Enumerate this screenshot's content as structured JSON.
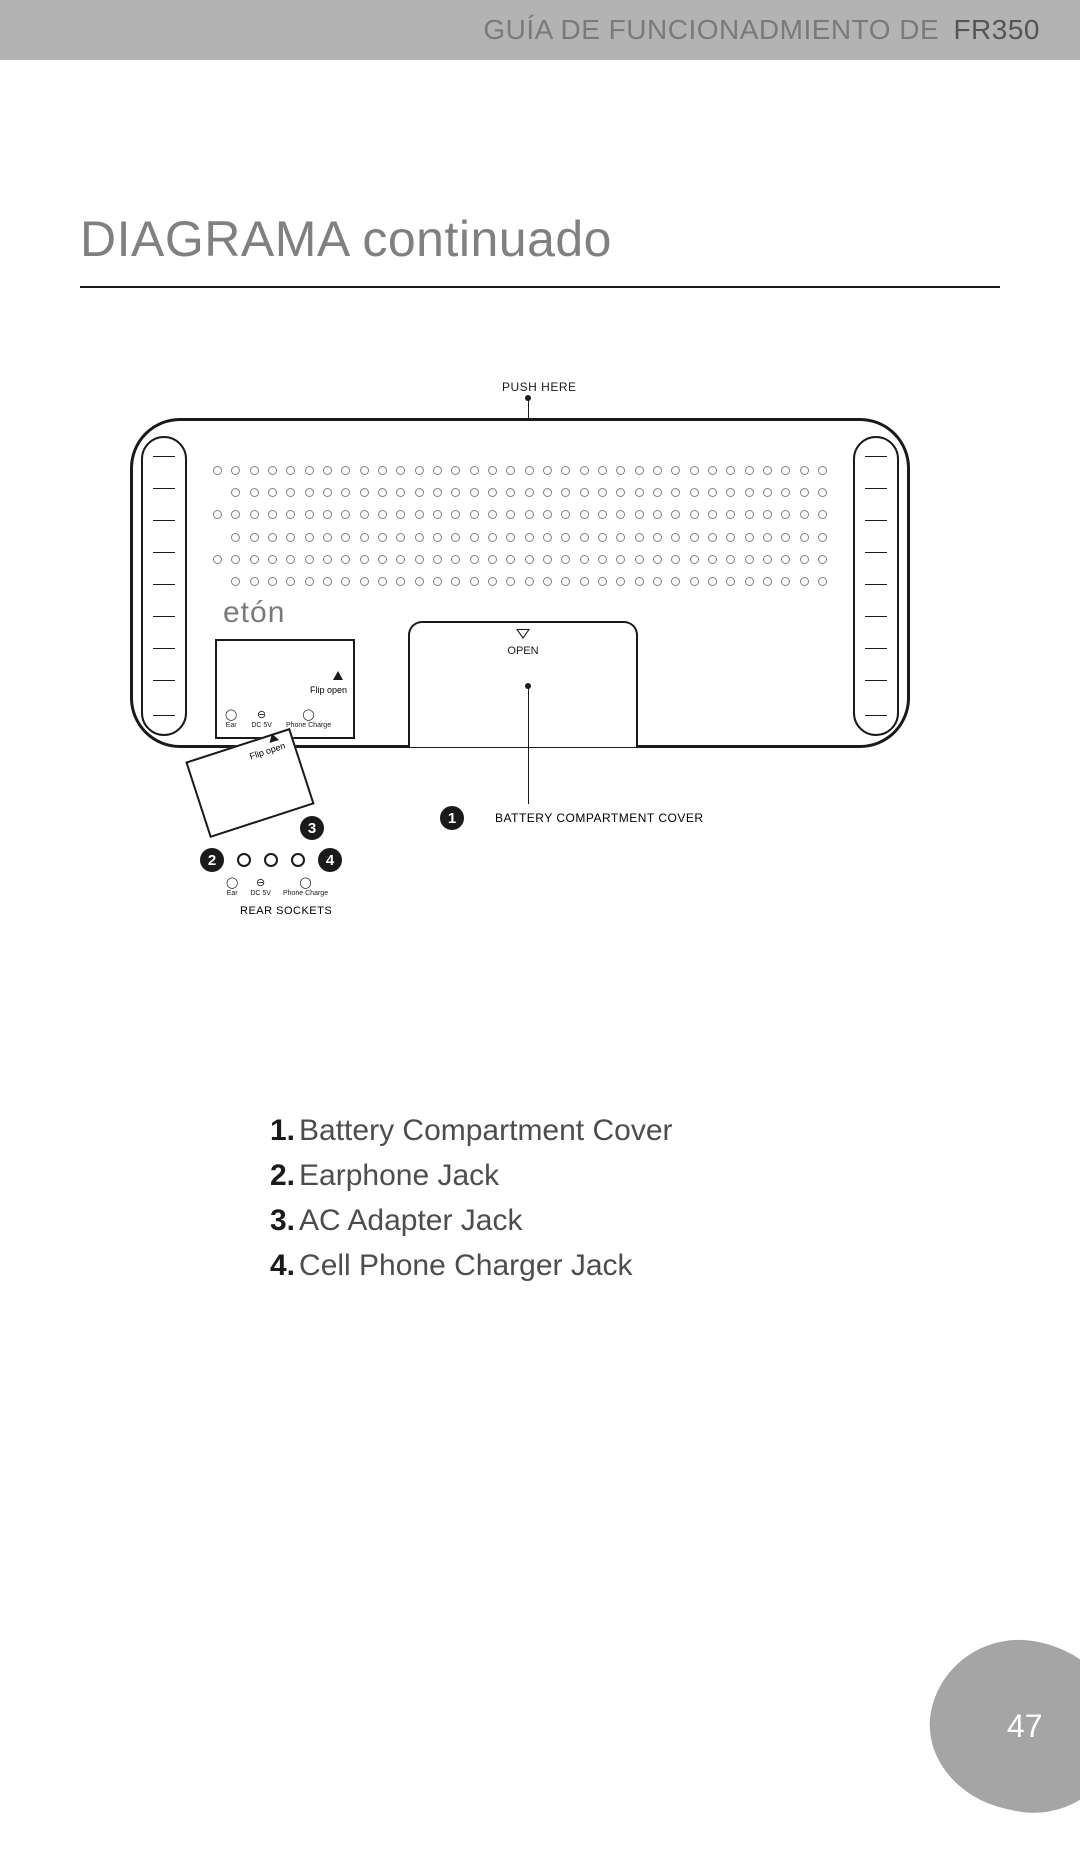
{
  "header": {
    "prefix": "GUÍA DE FUNCIONADMIENTO DE",
    "model": "FR350",
    "bar_color": "#b3b3b3",
    "text_color_prefix": "#7a7a7a",
    "text_color_model": "#555555",
    "font_size": 28
  },
  "title": {
    "text": "DIAGRAMA continuado",
    "color": "#808080",
    "font_size": 50,
    "rule_color": "#1a1a1a"
  },
  "diagram": {
    "brand_label": "etón",
    "push_here_label": "PUSH HERE",
    "open_label": "OPEN",
    "battery_cover_label": "BATTERY COMPARTMENT COVER",
    "rear_sockets_label": "REAR SOCKETS",
    "flip_open_label": "Flip open",
    "socket_icons": {
      "ear": "Ear",
      "dc": "DC 5V",
      "phone": "Phone Charge"
    },
    "callouts": {
      "1": "1",
      "2": "2",
      "3": "3",
      "4": "4"
    },
    "grill": {
      "rows": 6,
      "cols": 34
    },
    "colors": {
      "stroke": "#1a1a1a",
      "grill_hole": "#808080",
      "brand": "#7a7a7a",
      "background": "#ffffff"
    }
  },
  "legend": {
    "items": [
      {
        "n": "1.",
        "text": "Battery Compartment Cover"
      },
      {
        "n": "2.",
        "text": "Earphone Jack"
      },
      {
        "n": "3.",
        "text": "AC Adapter Jack"
      },
      {
        "n": "4.",
        "text": "Cell Phone Charger Jack"
      }
    ],
    "font_size": 30,
    "number_color": "#1a1a1a",
    "text_color": "#4d4d4d"
  },
  "page_number": {
    "value": "47",
    "pebble_color": "#a5a5a5",
    "text_color": "#ffffff",
    "font_size": 32
  }
}
